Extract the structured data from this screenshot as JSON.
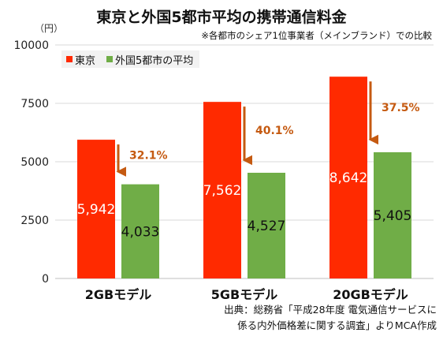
{
  "title": "東京と外国5都市平均の携帯通信料金",
  "subtitle": "※各都市のシェア1位事業者（メインブランド）での比較",
  "unit": "（円）",
  "footnote_lines": [
    "出典：総務省「平成28年度 電気通信サービスに",
    "係る内外価格差に関する調査」よりMCA作成"
  ],
  "colors": {
    "tokyo": "#ff2a00",
    "foreign": "#70ad47",
    "arrow": "#c55a11",
    "grid": "#d9d9d9"
  },
  "chart_data": {
    "type": "bar",
    "categories": [
      "2GBモデル",
      "5GBモデル",
      "20GBモデル"
    ],
    "series": [
      {
        "name": "東京",
        "values": [
          5942,
          7562,
          8642
        ],
        "labels": [
          "5,942",
          "7,562",
          "8,642"
        ]
      },
      {
        "name": "外国5都市の平均",
        "values": [
          4033,
          4527,
          5405
        ],
        "labels": [
          "4,033",
          "4,527",
          "5,405"
        ]
      }
    ],
    "annotations": [
      "32.1%",
      "40.1%",
      "37.5%"
    ],
    "ylim": [
      0,
      10000
    ],
    "yticks": [
      "0",
      "2500",
      "5000",
      "7500",
      "10000"
    ],
    "grid": true,
    "legend_position": "top-left"
  }
}
